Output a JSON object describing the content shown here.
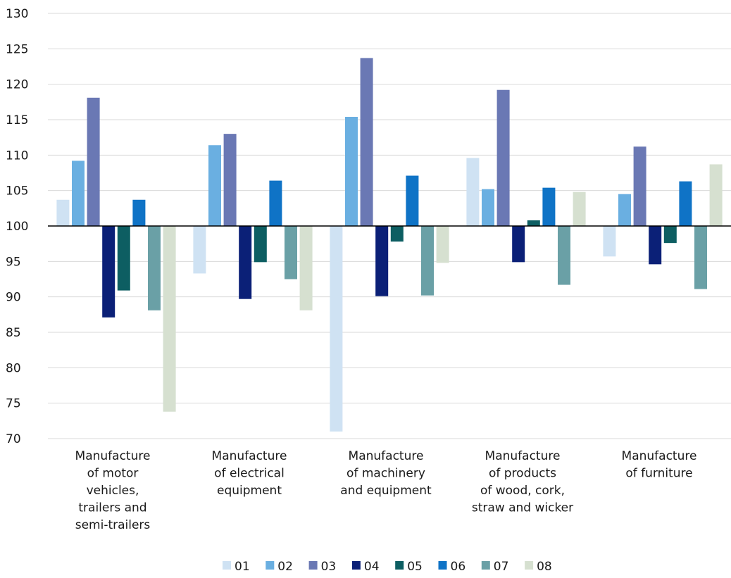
{
  "chart_data": {
    "type": "bar",
    "baseline": 100,
    "ylim": [
      70,
      130
    ],
    "yticks": [
      70,
      75,
      80,
      85,
      90,
      95,
      100,
      105,
      110,
      115,
      120,
      125,
      130
    ],
    "grid": true,
    "legend_position": "bottom",
    "categories": [
      [
        "Manufacture",
        "of motor",
        "vehicles,",
        "trailers and",
        "semi-trailers"
      ],
      [
        "Manufacture",
        "of electrical",
        "equipment"
      ],
      [
        "Manufacture",
        "of machinery",
        "and equipment"
      ],
      [
        "Manufacture",
        "of products",
        "of wood, cork,",
        "straw and wicker"
      ],
      [
        "Manufacture",
        "of furniture"
      ]
    ],
    "series": [
      {
        "name": "01",
        "color": "#cfe2f3",
        "values": [
          103.7,
          93.3,
          71.0,
          109.6,
          95.7
        ]
      },
      {
        "name": "02",
        "color": "#6aafe1",
        "values": [
          109.2,
          111.4,
          115.4,
          105.2,
          104.5
        ]
      },
      {
        "name": "03",
        "color": "#6a78b4",
        "values": [
          118.1,
          113.0,
          123.7,
          119.2,
          111.2
        ]
      },
      {
        "name": "04",
        "color": "#0b2077",
        "values": [
          87.1,
          89.7,
          90.1,
          94.9,
          94.6
        ]
      },
      {
        "name": "05",
        "color": "#0d5e62",
        "values": [
          90.9,
          94.9,
          97.8,
          100.8,
          97.6
        ]
      },
      {
        "name": "06",
        "color": "#0f73c6",
        "values": [
          103.7,
          106.4,
          107.1,
          105.4,
          106.3
        ]
      },
      {
        "name": "07",
        "color": "#6aa0a6",
        "values": [
          88.1,
          92.5,
          90.2,
          91.7,
          91.1
        ]
      },
      {
        "name": "08",
        "color": "#d6e0d0",
        "values": [
          73.8,
          88.1,
          94.8,
          104.8,
          108.7
        ]
      }
    ]
  }
}
